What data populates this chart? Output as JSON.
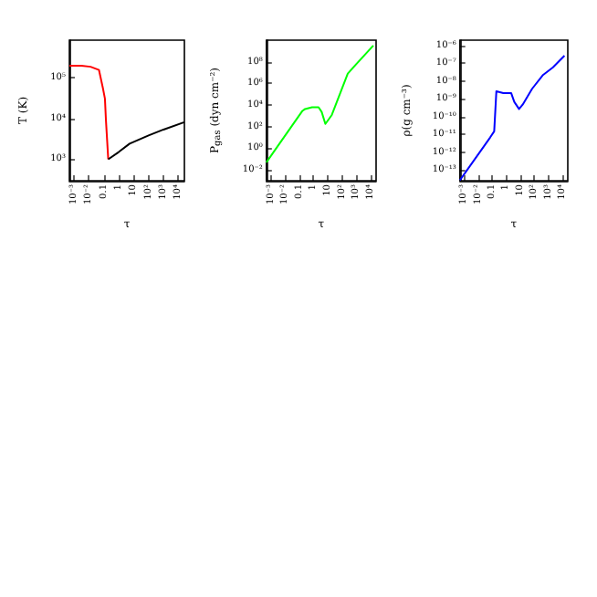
{
  "chart_data": [
    {
      "type": "line",
      "xlabel": "τ",
      "ylabel": "T (K)",
      "log": "xy",
      "xlim": [
        0.0005,
        25000
      ],
      "ylim": [
        300,
        800000
      ],
      "xticks": [
        {
          "value": 0.001,
          "label": "10⁻³"
        },
        {
          "value": 0.01,
          "label": "10⁻²"
        },
        {
          "value": 0.1,
          "label": "0.1"
        },
        {
          "value": 1,
          "label": "1"
        },
        {
          "value": 10,
          "label": "10"
        },
        {
          "value": 100,
          "label": "10²"
        },
        {
          "value": 1000,
          "label": "10³"
        },
        {
          "value": 10000,
          "label": "10⁴"
        }
      ],
      "yticks": [
        {
          "value": 1000,
          "label": "10³"
        },
        {
          "value": 10000,
          "label": "10⁴"
        },
        {
          "value": 100000,
          "label": "10⁵"
        }
      ],
      "series": [
        {
          "color": "#ff0000",
          "x": [
            0.0005,
            0.0032,
            0.013,
            0.048,
            0.087,
            0.12,
            0.14,
            0.2
          ],
          "values": [
            190000,
            190000,
            180000,
            150000,
            55000,
            30000,
            9000,
            1000
          ]
        },
        {
          "color": "#000000",
          "x": [
            0.2,
            1,
            5.4,
            100,
            1000,
            24500
          ],
          "values": [
            1000,
            1500,
            2400,
            3800,
            5300,
            8000
          ]
        }
      ]
    },
    {
      "type": "line",
      "xlabel": "τ",
      "ylabel": "P$_{gas}$ (dyn cm⁻²)",
      "log": "xy",
      "xlim": [
        0.0005,
        25000
      ],
      "ylim": [
        0.001,
        10000000000
      ],
      "xticks": [
        {
          "value": 0.001,
          "label": "10⁻³"
        },
        {
          "value": 0.01,
          "label": "10⁻²"
        },
        {
          "value": 0.1,
          "label": "0.1"
        },
        {
          "value": 1,
          "label": "1"
        },
        {
          "value": 10,
          "label": "10"
        },
        {
          "value": 100,
          "label": "10²"
        },
        {
          "value": 1000,
          "label": "10³"
        },
        {
          "value": 10000,
          "label": "10⁴"
        }
      ],
      "yticks": [
        {
          "value": 0.01,
          "label": "10⁻²"
        },
        {
          "value": 1,
          "label": "10⁰"
        },
        {
          "value": 100,
          "label": "10²"
        },
        {
          "value": 10000,
          "label": "10⁴"
        },
        {
          "value": 1000000,
          "label": "10⁶"
        },
        {
          "value": 100000000,
          "label": "10⁸"
        }
      ],
      "series": [
        {
          "color": "#00ff00",
          "x": [
            0.0005,
            0.17,
            0.26,
            0.8,
            2.3,
            3.8,
            6.9,
            19.5,
            257,
            933,
            16000
          ],
          "values": [
            0.05,
            2900,
            4300,
            6300,
            6300,
            2300,
            180,
            1200,
            8000000,
            54000000,
            3200000000
          ]
        }
      ]
    },
    {
      "type": "line",
      "xlabel": "τ",
      "ylabel": "ρ(g cm⁻³)",
      "log": "xy",
      "xlim": [
        0.0005,
        25000
      ],
      "ylim": [
        2.5e-14,
        2e-06
      ],
      "xticks": [
        {
          "value": 0.001,
          "label": "10⁻³"
        },
        {
          "value": 0.01,
          "label": "10⁻²"
        },
        {
          "value": 0.1,
          "label": "0.1"
        },
        {
          "value": 1,
          "label": "1"
        },
        {
          "value": 10,
          "label": "10"
        },
        {
          "value": 100,
          "label": "10²"
        },
        {
          "value": 1000,
          "label": "10³"
        },
        {
          "value": 10000,
          "label": "10⁴"
        }
      ],
      "yticks": [
        {
          "value": 1e-13,
          "label": "10⁻¹³"
        },
        {
          "value": 1e-12,
          "label": "10⁻¹²"
        },
        {
          "value": 1e-11,
          "label": "10⁻¹¹"
        },
        {
          "value": 1e-10,
          "label": "10⁻¹⁰"
        },
        {
          "value": 1e-09,
          "label": "10⁻⁹"
        },
        {
          "value": 1e-08,
          "label": "10⁻⁸"
        },
        {
          "value": 1e-07,
          "label": "10⁻⁷"
        },
        {
          "value": 1e-06,
          "label": "10⁻⁶"
        }
      ],
      "series": [
        {
          "color": "#0000ff",
          "x": [
            0.0005,
            0.072,
            0.14,
            0.2,
            0.63,
            2.3,
            3.8,
            8.3,
            15,
            71,
            400,
            2200,
            14500
          ],
          "values": [
            2.7e-14,
            6.8e-12,
            1.5e-11,
            2.7e-09,
            2.1e-09,
            2.1e-09,
            6.8e-10,
            2.7e-10,
            4.7e-10,
            3.7e-09,
            2.1e-08,
            5.9e-08,
            2.7e-07
          ]
        }
      ]
    }
  ]
}
